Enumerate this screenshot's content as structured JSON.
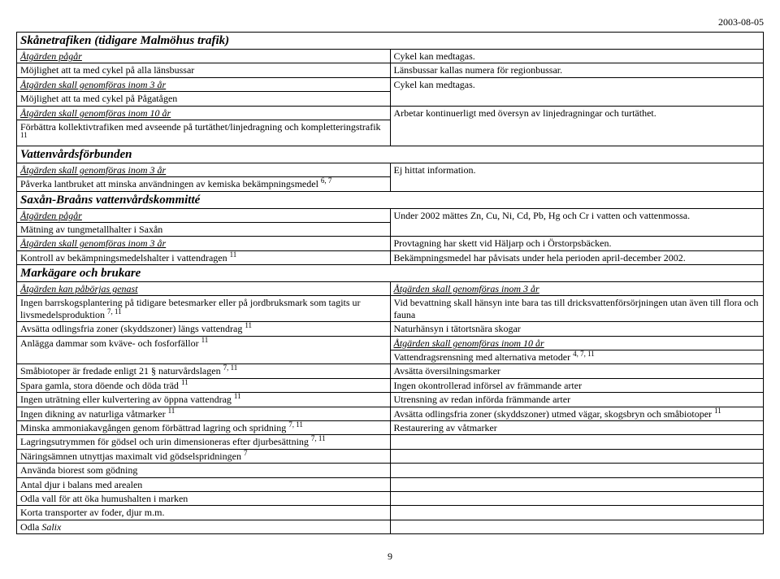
{
  "date": "2003-08-05",
  "page_number": "9",
  "sections": {
    "skanetrafiken": {
      "title": "Skånetrafiken (tidigare Malmöhus trafik)",
      "rows": [
        {
          "left": "Åtgärden pågår",
          "left_style": "sub",
          "right": "Cykel kan medtagas."
        },
        {
          "left": "Möjlighet att ta med cykel på alla länsbussar",
          "right": "Länsbussar kallas numera för regionbussar."
        },
        {
          "left": "Åtgärden skall genomföras inom 3 år",
          "left_style": "sub",
          "right": "Cykel kan medtagas."
        },
        {
          "left": "Möjlighet att ta med cykel på Pågatågen",
          "right": ""
        },
        {
          "left": "Åtgärden skall genomföras inom 10 år",
          "left_style": "sub",
          "right": "Arbetar kontinuerligt med översyn av linjedragningar och turtäthet."
        },
        {
          "left": "Förbättra kollektivtrafiken med avseende på turtäthet/linjedragning och kompletteringstrafik",
          "left_sup": "11",
          "right": ""
        }
      ]
    },
    "vattenvard": {
      "title": "Vattenvårdsförbunden",
      "rows": [
        {
          "left": "Åtgärden skall genomföras inom 3 år",
          "left_style": "sub",
          "right": "Ej hittat information."
        },
        {
          "left": "Påverka lantbruket att minska användningen av kemiska bekämpningsmedel",
          "left_sup": "6, 7",
          "right": ""
        }
      ]
    },
    "saxan": {
      "title": "Saxån-Braåns vattenvårdskommitté",
      "rows": [
        {
          "left": "Åtgärden pågår",
          "left_style": "sub",
          "right": "Under 2002 mättes Zn, Cu, Ni, Cd, Pb, Hg och Cr i vatten och vattenmossa."
        },
        {
          "left": "Mätning av tungmetallhalter i Saxån",
          "right": ""
        },
        {
          "left": "Åtgärden skall genomföras inom 3 år",
          "left_style": "sub",
          "right": "Provtagning har skett vid Häljarp och i Örstorpsbäcken."
        },
        {
          "left": "Kontroll av bekämpningsmedelshalter i vattendragen",
          "left_sup": "11",
          "right": "Bekämpningsmedel har påvisats under hela perioden april-december 2002."
        }
      ]
    },
    "markagare": {
      "title": "Markägare och brukare",
      "rows": [
        {
          "left": "Åtgärden kan påbörjas genast",
          "left_style": "sub",
          "right": "Åtgärden skall genomföras inom 3 år",
          "right_style": "sub"
        },
        {
          "left": "Ingen barrskogsplantering på tidigare betesmarker eller på jordbruksmark som tagits ur livsmedelsproduktion",
          "left_sup": "7, 11",
          "right": "Vid bevattning skall hänsyn inte bara tas till dricksvattenförsörjningen utan även till flora och fauna"
        },
        {
          "left": "Avsätta odlingsfria zoner (skyddszoner) längs vattendrag",
          "left_sup": "11",
          "right": "Naturhänsyn i tätortsnära skogar"
        },
        {
          "left": "Anlägga dammar som kväve- och fosforfällor",
          "left_sup": "11",
          "right": "Åtgärden skall genomföras inom 10 år",
          "right_style": "sub"
        },
        {
          "left": "",
          "right": "Vattendragsrensning med alternativa metoder",
          "right_sup": "4, 7, 11"
        },
        {
          "left": "Småbiotoper är fredade enligt 21 § naturvårdslagen",
          "left_sup": "7, 11",
          "right": "Avsätta översilningsmarker"
        },
        {
          "left": "Spara gamla, stora döende och döda träd",
          "left_sup": "11",
          "right": "Ingen okontrollerad införsel av främmande arter"
        },
        {
          "left": "Ingen uträtning eller kulvertering av öppna vattendrag",
          "left_sup": "11",
          "right": "Utrensning av redan införda främmande arter"
        },
        {
          "left": "Ingen dikning av naturliga våtmarker",
          "left_sup": "11",
          "right": "Avsätta odlingsfria zoner (skyddszoner) utmed vägar, skogsbryn och småbiotoper",
          "right_sup": "11"
        },
        {
          "left": "Minska ammoniakavgången genom förbättrad lagring och spridning",
          "left_sup": "7, 11",
          "right": "Restaurering av våtmarker"
        },
        {
          "left": "Lagringsutrymmen för gödsel och urin dimensioneras efter djurbesättning",
          "left_sup": "7, 11",
          "right": ""
        },
        {
          "left": "Näringsämnen utnyttjas maximalt vid gödselspridningen",
          "left_sup": "7",
          "right": ""
        },
        {
          "left": "Använda biorest som gödning",
          "right": ""
        },
        {
          "left": "Antal djur i balans med arealen",
          "right": ""
        },
        {
          "left": "Odla vall för att öka humushalten i marken",
          "right": ""
        },
        {
          "left": "Korta transporter av foder, djur m.m.",
          "right": ""
        },
        {
          "left": "Odla Salix",
          "left_italic_word": "Salix",
          "right": ""
        }
      ]
    }
  }
}
